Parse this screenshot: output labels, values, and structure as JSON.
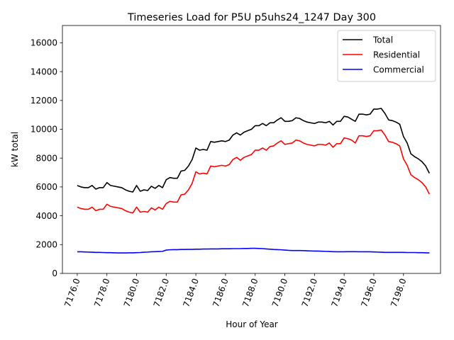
{
  "chart_data": {
    "type": "line",
    "title": "Timeseries Load for P5U p5uhs24_1247  Day 300",
    "xlabel": "Hour of Year",
    "ylabel": "kW total",
    "xlim": [
      7175,
      7200.5
    ],
    "ylim": [
      0,
      17200
    ],
    "x_ticks": [
      7176,
      7178,
      7180,
      7182,
      7184,
      7186,
      7188,
      7190,
      7192,
      7194,
      7196,
      7198
    ],
    "x_tick_labels": [
      "7176.0",
      "7178.0",
      "7180.0",
      "7182.0",
      "7184.0",
      "7186.0",
      "7188.0",
      "7190.0",
      "7192.0",
      "7194.0",
      "7196.0",
      "7198.0"
    ],
    "y_ticks": [
      0,
      2000,
      4000,
      6000,
      8000,
      10000,
      12000,
      14000,
      16000
    ],
    "y_tick_labels": [
      "0",
      "2000",
      "4000",
      "6000",
      "8000",
      "10000",
      "12000",
      "14000",
      "16000"
    ],
    "legend_position": "top-right",
    "x": [
      7176.0,
      7176.25,
      7176.5,
      7176.75,
      7177.0,
      7177.25,
      7177.5,
      7177.75,
      7178.0,
      7178.25,
      7178.5,
      7178.75,
      7179.0,
      7179.25,
      7179.5,
      7179.75,
      7180.0,
      7180.25,
      7180.5,
      7180.75,
      7181.0,
      7181.25,
      7181.5,
      7181.75,
      7182.0,
      7182.25,
      7182.5,
      7182.75,
      7183.0,
      7183.25,
      7183.5,
      7183.75,
      7184.0,
      7184.25,
      7184.5,
      7184.75,
      7185.0,
      7185.25,
      7185.5,
      7185.75,
      7186.0,
      7186.25,
      7186.5,
      7186.75,
      7187.0,
      7187.25,
      7187.5,
      7187.75,
      7188.0,
      7188.25,
      7188.5,
      7188.75,
      7189.0,
      7189.25,
      7189.5,
      7189.75,
      7190.0,
      7190.25,
      7190.5,
      7190.75,
      7191.0,
      7191.25,
      7191.5,
      7191.75,
      7192.0,
      7192.25,
      7192.5,
      7192.75,
      7193.0,
      7193.25,
      7193.5,
      7193.75,
      7194.0,
      7194.25,
      7194.5,
      7194.75,
      7195.0,
      7195.25,
      7195.5,
      7195.75,
      7196.0,
      7196.25,
      7196.5,
      7196.75,
      7197.0,
      7197.25,
      7197.5,
      7197.75,
      7198.0,
      7198.25,
      7198.5,
      7198.75,
      7199.0,
      7199.25,
      7199.5,
      7199.75
    ],
    "series": [
      {
        "name": "Total",
        "color": "#000000",
        "values": [
          6100,
          6000,
          5950,
          5950,
          6100,
          5850,
          5950,
          5950,
          6300,
          6100,
          6050,
          6000,
          5950,
          5800,
          5700,
          5650,
          6100,
          5700,
          5800,
          5750,
          6050,
          5900,
          6100,
          5950,
          6500,
          6650,
          6600,
          6600,
          7100,
          7150,
          7450,
          7900,
          8700,
          8550,
          8600,
          8550,
          9150,
          9100,
          9150,
          9200,
          9150,
          9250,
          9600,
          9750,
          9600,
          9800,
          9900,
          10000,
          10250,
          10250,
          10400,
          10250,
          10450,
          10450,
          10650,
          10800,
          10550,
          10550,
          10600,
          10800,
          10750,
          10600,
          10500,
          10450,
          10400,
          10500,
          10500,
          10450,
          10550,
          10300,
          10550,
          10550,
          10900,
          10850,
          10700,
          10550,
          11050,
          11050,
          11000,
          11050,
          11400,
          11400,
          11450,
          11100,
          10650,
          10600,
          10500,
          10350,
          9500,
          9050,
          8300,
          8100,
          7950,
          7750,
          7450,
          6950
        ]
      },
      {
        "name": "Residential",
        "color": "#ff0000",
        "values": [
          4600,
          4500,
          4450,
          4450,
          4600,
          4350,
          4450,
          4450,
          4800,
          4650,
          4600,
          4550,
          4500,
          4350,
          4250,
          4200,
          4600,
          4250,
          4300,
          4250,
          4550,
          4400,
          4600,
          4450,
          4850,
          5000,
          4950,
          4950,
          5450,
          5500,
          5800,
          6250,
          7050,
          6900,
          6950,
          6900,
          7450,
          7400,
          7450,
          7500,
          7450,
          7550,
          7900,
          8050,
          7850,
          8050,
          8150,
          8250,
          8550,
          8550,
          8700,
          8550,
          8800,
          8850,
          9050,
          9200,
          8950,
          9000,
          9050,
          9250,
          9200,
          9050,
          8950,
          8900,
          8850,
          8950,
          8950,
          8900,
          9050,
          8750,
          9000,
          9000,
          9400,
          9350,
          9250,
          9050,
          9550,
          9550,
          9500,
          9550,
          9900,
          9900,
          9950,
          9600,
          9150,
          9100,
          9000,
          8850,
          7950,
          7500,
          6850,
          6650,
          6500,
          6300,
          6000,
          5500
        ]
      },
      {
        "name": "Commercial",
        "color": "#0000ff",
        "values": [
          1500,
          1500,
          1490,
          1480,
          1470,
          1460,
          1460,
          1450,
          1440,
          1440,
          1430,
          1420,
          1420,
          1420,
          1430,
          1430,
          1440,
          1450,
          1470,
          1480,
          1500,
          1510,
          1520,
          1530,
          1620,
          1640,
          1650,
          1650,
          1660,
          1660,
          1670,
          1670,
          1680,
          1680,
          1690,
          1690,
          1700,
          1700,
          1700,
          1710,
          1710,
          1710,
          1720,
          1720,
          1720,
          1730,
          1730,
          1740,
          1740,
          1730,
          1720,
          1700,
          1680,
          1660,
          1650,
          1640,
          1620,
          1600,
          1590,
          1590,
          1590,
          1580,
          1570,
          1560,
          1550,
          1550,
          1540,
          1530,
          1520,
          1510,
          1500,
          1500,
          1500,
          1510,
          1510,
          1510,
          1500,
          1500,
          1500,
          1500,
          1490,
          1480,
          1470,
          1460,
          1460,
          1460,
          1460,
          1460,
          1460,
          1450,
          1450,
          1450,
          1440,
          1440,
          1430,
          1420
        ]
      }
    ]
  }
}
